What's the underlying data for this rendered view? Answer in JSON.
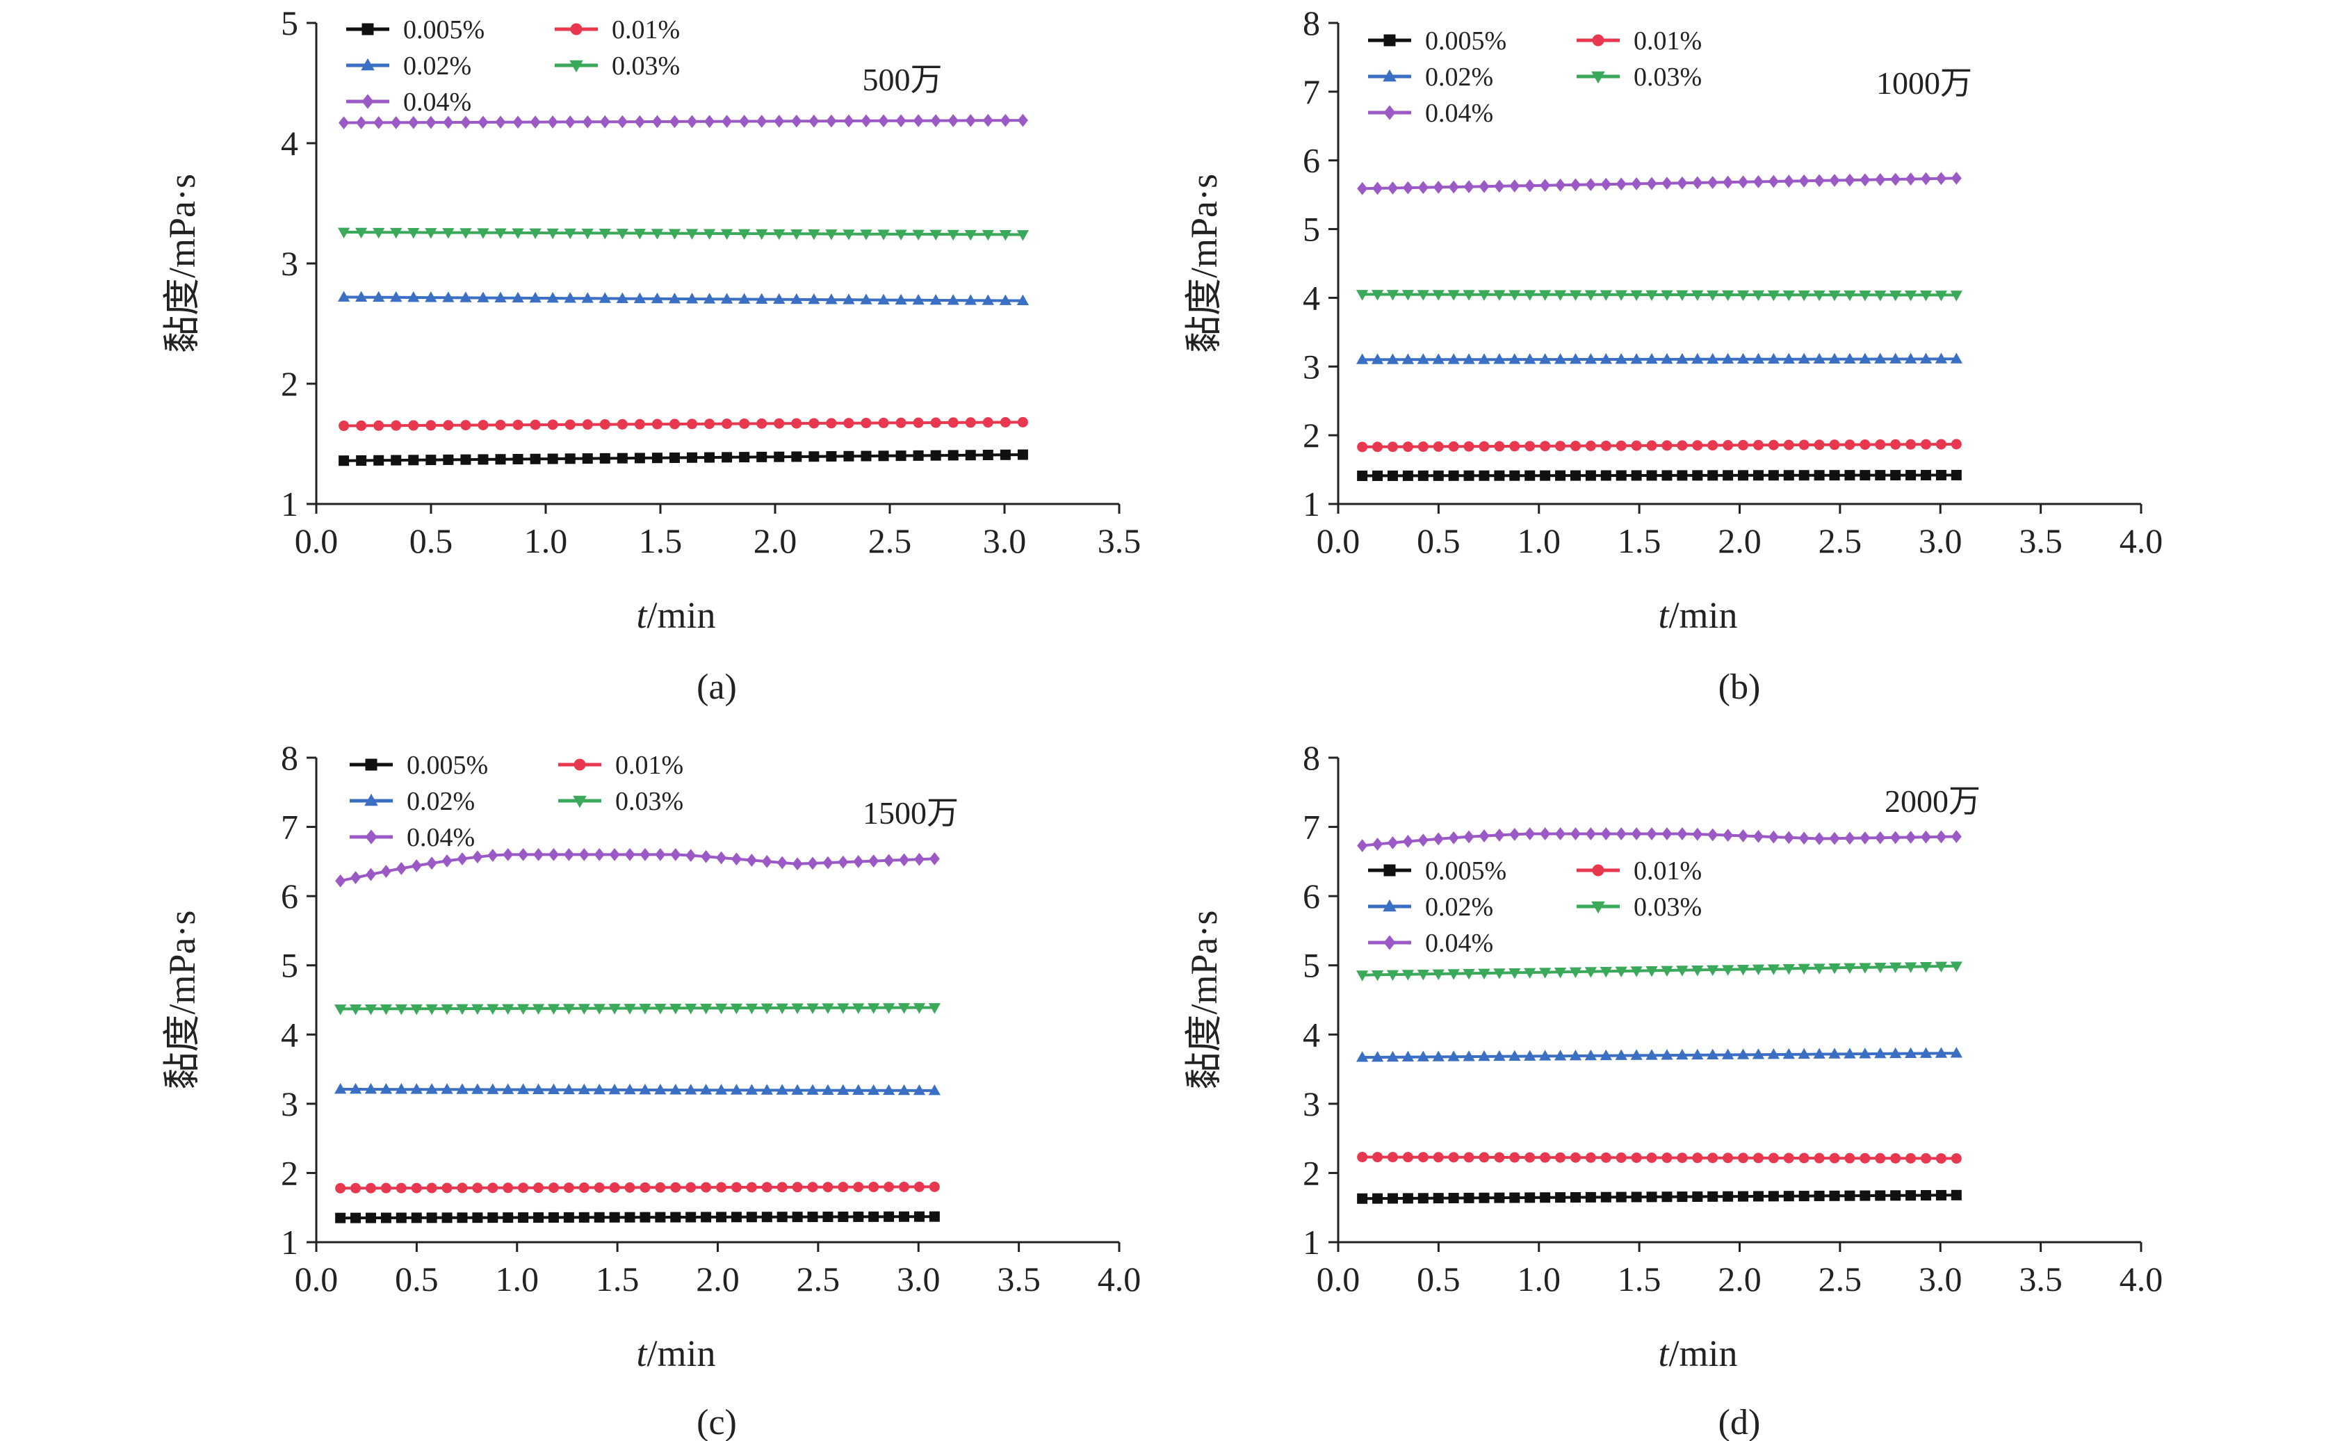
{
  "chart_data": [
    {
      "type": "line",
      "note": "500万",
      "caption": "(a)",
      "xlabel": "t/min",
      "ylabel": "黏度/mPa·s",
      "xlim": [
        0,
        3.5
      ],
      "ylim": [
        1,
        5
      ],
      "xticks": [
        "0.0",
        "0.5",
        "1.0",
        "1.5",
        "2.0",
        "2.5",
        "3.0",
        "3.5"
      ],
      "yticks": [
        "1",
        "2",
        "3",
        "4",
        "5"
      ],
      "x_range": [
        0.12,
        3.08
      ],
      "legend_position": "top-left",
      "series": [
        {
          "name": "0.005%",
          "marker": "square",
          "color": "#111111",
          "start": 1.36,
          "end": 1.41,
          "peak": null
        },
        {
          "name": "0.01%",
          "marker": "circle",
          "color": "#e8384f",
          "start": 1.65,
          "end": 1.68,
          "peak": null
        },
        {
          "name": "0.02%",
          "marker": "triangle-up",
          "color": "#3a6fc4",
          "start": 2.72,
          "end": 2.69,
          "peak": null
        },
        {
          "name": "0.03%",
          "marker": "triangle-down",
          "color": "#3aa95a",
          "start": 3.26,
          "end": 3.24,
          "peak": null
        },
        {
          "name": "0.04%",
          "marker": "diamond",
          "color": "#9b59c6",
          "start": 4.17,
          "end": 4.19,
          "peak": null
        }
      ]
    },
    {
      "type": "line",
      "note": "1000万",
      "caption": "(b)",
      "xlabel": "t/min",
      "ylabel": "黏度/mPa·s",
      "xlim": [
        0,
        4.0
      ],
      "ylim": [
        1,
        8
      ],
      "xticks": [
        "0.0",
        "0.5",
        "1.0",
        "1.5",
        "2.0",
        "2.5",
        "3.0",
        "3.5",
        "4.0"
      ],
      "yticks": [
        "1",
        "2",
        "3",
        "4",
        "5",
        "6",
        "7",
        "8"
      ],
      "x_range": [
        0.12,
        3.08
      ],
      "legend_position": "top-left",
      "series": [
        {
          "name": "0.005%",
          "marker": "square",
          "color": "#111111",
          "start": 1.41,
          "end": 1.42,
          "peak": null
        },
        {
          "name": "0.01%",
          "marker": "circle",
          "color": "#e8384f",
          "start": 1.83,
          "end": 1.87,
          "peak": null
        },
        {
          "name": "0.02%",
          "marker": "triangle-up",
          "color": "#3a6fc4",
          "start": 3.1,
          "end": 3.11,
          "peak": null
        },
        {
          "name": "0.03%",
          "marker": "triangle-down",
          "color": "#3aa95a",
          "start": 4.05,
          "end": 4.04,
          "peak": null
        },
        {
          "name": "0.04%",
          "marker": "diamond",
          "color": "#9b59c6",
          "start": 5.59,
          "end": 5.74,
          "peak": null
        }
      ]
    },
    {
      "type": "line",
      "note": "1500万",
      "caption": "(c)",
      "xlabel": "t/min",
      "ylabel": "黏度/mPa·s",
      "xlim": [
        0,
        4.0
      ],
      "ylim": [
        1,
        8
      ],
      "xticks": [
        "0.0",
        "0.5",
        "1.0",
        "1.5",
        "2.0",
        "2.5",
        "3.0",
        "3.5",
        "4.0"
      ],
      "yticks": [
        "1",
        "2",
        "3",
        "4",
        "5",
        "6",
        "7",
        "8"
      ],
      "x_range": [
        0.12,
        3.08
      ],
      "legend_position": "top-left",
      "series": [
        {
          "name": "0.005%",
          "marker": "square",
          "color": "#111111",
          "start": 1.35,
          "end": 1.37,
          "peak": null
        },
        {
          "name": "0.01%",
          "marker": "circle",
          "color": "#e8384f",
          "start": 1.78,
          "end": 1.8,
          "peak": null
        },
        {
          "name": "0.02%",
          "marker": "triangle-up",
          "color": "#3a6fc4",
          "start": 3.21,
          "end": 3.19,
          "peak": null
        },
        {
          "name": "0.03%",
          "marker": "triangle-down",
          "color": "#3aa95a",
          "start": 4.37,
          "end": 4.39,
          "peak": null
        },
        {
          "name": "0.04%",
          "marker": "diamond",
          "color": "#9b59c6",
          "start": 6.22,
          "end": 6.54,
          "peak": 6.6
        }
      ]
    },
    {
      "type": "line",
      "note": "2000万",
      "caption": "(d)",
      "xlabel": "t/min",
      "ylabel": "黏度/mPa·s",
      "xlim": [
        0,
        4.0
      ],
      "ylim": [
        1,
        8
      ],
      "xticks": [
        "0.0",
        "0.5",
        "1.0",
        "1.5",
        "2.0",
        "2.5",
        "3.0",
        "3.5",
        "4.0"
      ],
      "yticks": [
        "1",
        "2",
        "3",
        "4",
        "5",
        "6",
        "7",
        "8"
      ],
      "x_range": [
        0.12,
        3.08
      ],
      "legend_position": "middle-left",
      "series": [
        {
          "name": "0.005%",
          "marker": "square",
          "color": "#111111",
          "start": 1.63,
          "end": 1.68,
          "peak": null
        },
        {
          "name": "0.01%",
          "marker": "circle",
          "color": "#e8384f",
          "start": 2.23,
          "end": 2.21,
          "peak": null
        },
        {
          "name": "0.02%",
          "marker": "triangle-up",
          "color": "#3a6fc4",
          "start": 3.67,
          "end": 3.73,
          "peak": null
        },
        {
          "name": "0.03%",
          "marker": "triangle-down",
          "color": "#3aa95a",
          "start": 4.86,
          "end": 4.99,
          "peak": null
        },
        {
          "name": "0.04%",
          "marker": "diamond",
          "color": "#9b59c6",
          "start": 6.73,
          "end": 6.86,
          "peak": 6.9
        }
      ]
    }
  ]
}
